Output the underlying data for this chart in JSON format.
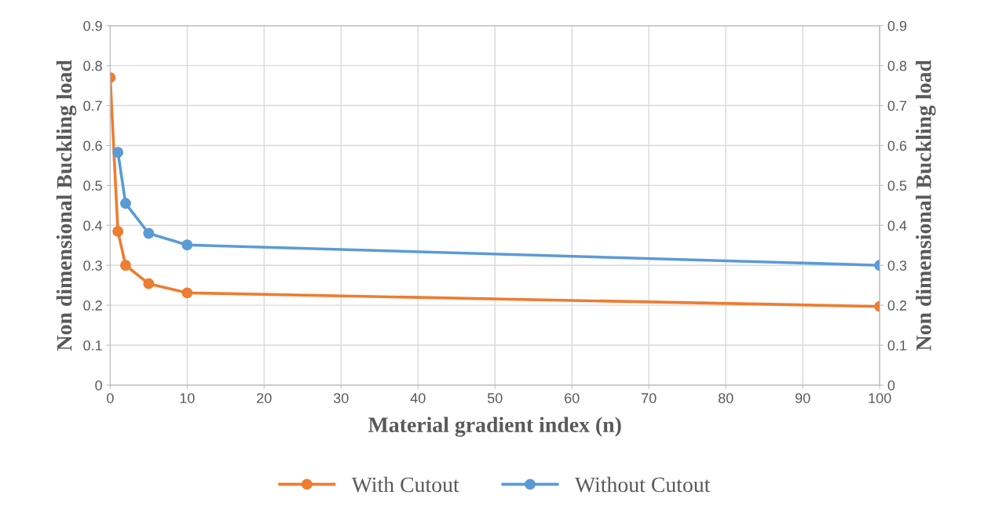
{
  "chart_data": {
    "type": "line",
    "xlabel": "Material gradient index (n)",
    "ylabel": "Non dimensional Buckling load",
    "y2label": "Non dimensional Buckling load",
    "x": [
      0,
      1,
      2,
      5,
      10,
      100
    ],
    "series": [
      {
        "name": "With Cutout",
        "color": "#ed7d31",
        "values": [
          0.77,
          0.385,
          0.3,
          0.254,
          0.231,
          0.197
        ]
      },
      {
        "name": "Without Cutout",
        "color": "#5b9bd5",
        "values": [
          null,
          0.583,
          0.455,
          0.38,
          0.351,
          0.3
        ]
      }
    ],
    "xlim": [
      0,
      100
    ],
    "xticks": [
      0,
      10,
      20,
      30,
      40,
      50,
      60,
      70,
      80,
      90,
      100
    ],
    "ylim": [
      0,
      0.9
    ],
    "yticks": [
      0,
      0.1,
      0.2,
      0.3,
      0.4,
      0.5,
      0.6,
      0.7,
      0.8,
      0.9
    ],
    "y2lim": [
      0,
      0.9
    ],
    "y2ticks": [
      0,
      0.1,
      0.2,
      0.3,
      0.4,
      0.5,
      0.6,
      0.7,
      0.8,
      0.9
    ],
    "grid": true,
    "legend": "bottom",
    "marker": "circle",
    "line_style": "solid"
  }
}
